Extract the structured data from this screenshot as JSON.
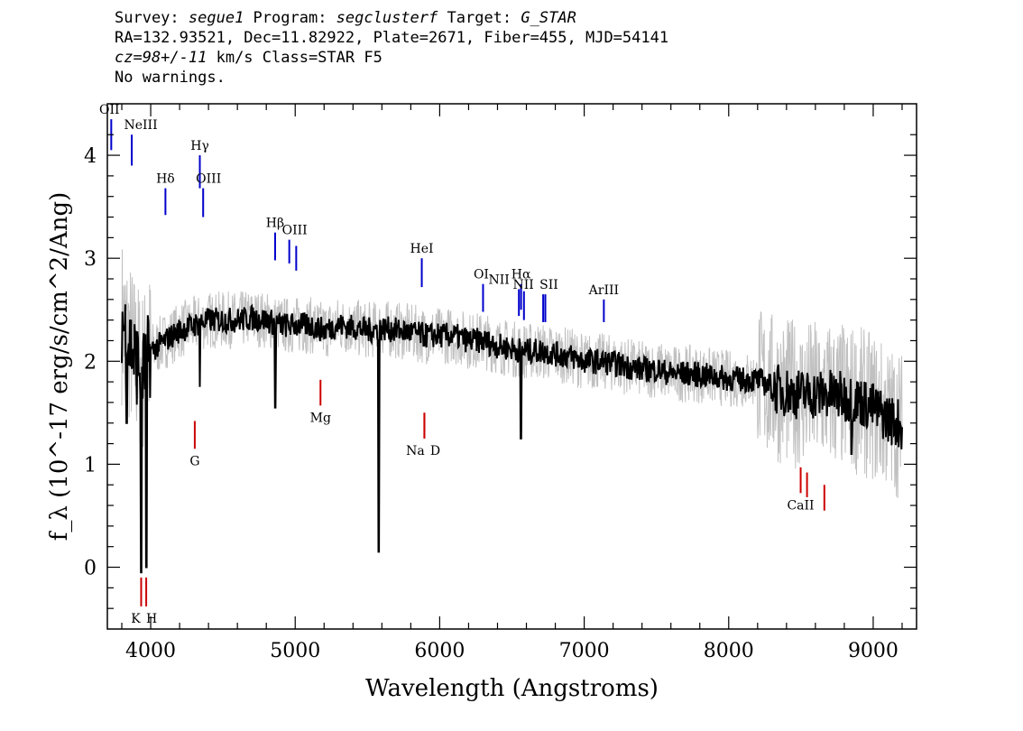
{
  "header": {
    "line1": {
      "survey_label": "Survey: ",
      "survey": "segue1",
      "program_label": " Program: ",
      "program": "segclusterf",
      "target_label": " Target: ",
      "target": "G_STAR"
    },
    "line2": "RA=132.93521, Dec=11.82922, Plate=2671, Fiber=455, MJD=54141",
    "line3": {
      "cz": "cz=98+/-11",
      "rest": " km/s Class=STAR F5"
    },
    "line4": "No warnings."
  },
  "chart_data": {
    "type": "line",
    "xlabel": "Wavelength (Angstroms)",
    "ylabel": "f_λ (10^-17 erg/s/cm^2/Ang)",
    "xlim": [
      3700,
      9300
    ],
    "ylim": [
      -0.6,
      4.5
    ],
    "xticks": [
      4000,
      5000,
      6000,
      7000,
      8000,
      9000
    ],
    "yticks": [
      0,
      1,
      2,
      3,
      4
    ],
    "colors": {
      "spectrum": "#000000",
      "error": "#c0c0c0",
      "emission": "#0000cc",
      "absorption": "#cc0000"
    },
    "series": [
      {
        "name": "",
        "color": "#000000",
        "x": [
          3800,
          3850,
          3900,
          3950,
          4000,
          4100,
          4200,
          4300,
          4400,
          4500,
          4600,
          4700,
          4800,
          4900,
          5000,
          5100,
          5200,
          5300,
          5400,
          5500,
          5600,
          5700,
          5800,
          5900,
          6000,
          6100,
          6200,
          6300,
          6400,
          6500,
          6600,
          6700,
          6800,
          6900,
          7000,
          7100,
          7200,
          7300,
          7400,
          7500,
          7600,
          7700,
          7800,
          7900,
          8000,
          8100,
          8200,
          8300,
          8400,
          8500,
          8600,
          8700,
          8800,
          8900,
          9000,
          9100,
          9200
        ],
        "y": [
          2.4,
          2.2,
          2.0,
          1.9,
          2.1,
          2.2,
          2.3,
          2.35,
          2.4,
          2.4,
          2.4,
          2.42,
          2.4,
          2.35,
          2.35,
          2.35,
          2.3,
          2.35,
          2.33,
          2.3,
          2.32,
          2.3,
          2.28,
          2.25,
          2.25,
          2.25,
          2.2,
          2.2,
          2.15,
          2.12,
          2.1,
          2.1,
          2.07,
          2.05,
          2.0,
          2.0,
          1.98,
          1.95,
          1.92,
          1.92,
          1.88,
          1.88,
          1.87,
          1.85,
          1.83,
          1.82,
          1.82,
          1.75,
          1.7,
          1.68,
          1.68,
          1.68,
          1.65,
          1.62,
          1.55,
          1.45,
          1.38
        ]
      }
    ],
    "absorption_dips": [
      {
        "x": 3934,
        "y": -0.05
      },
      {
        "x": 3969,
        "y": 0.0
      },
      {
        "x": 3835,
        "y": 1.4
      },
      {
        "x": 4861,
        "y": 1.55
      },
      {
        "x": 4340,
        "y": 1.75
      },
      {
        "x": 5577,
        "y": 0.15
      },
      {
        "x": 6563,
        "y": 1.25
      },
      {
        "x": 8850,
        "y": 1.1
      }
    ],
    "emission_lines": [
      {
        "label": "OII",
        "x": 3727,
        "line_top": 4.35,
        "line_bottom": 4.05
      },
      {
        "label": "NeIII",
        "x": 3869,
        "line_top": 4.2,
        "line_bottom": 3.9
      },
      {
        "label": "Hδ",
        "x": 4102,
        "line_top": 3.68,
        "line_bottom": 3.42
      },
      {
        "label": "Hγ",
        "x": 4340,
        "line_top": 4.0,
        "line_bottom": 3.68
      },
      {
        "label": "OIII",
        "x": 4363,
        "line_top": 3.68,
        "line_bottom": 3.4
      },
      {
        "label": "Hβ",
        "x": 4861,
        "line_top": 3.25,
        "line_bottom": 2.98
      },
      {
        "label": "OIII",
        "x": 4959,
        "line_top": 3.18,
        "line_bottom": 2.95
      },
      {
        "label": "",
        "x": 5007,
        "line_top": 3.12,
        "line_bottom": 2.88
      },
      {
        "label": "HeI",
        "x": 5876,
        "line_top": 3.0,
        "line_bottom": 2.72
      },
      {
        "label": "OI",
        "x": 6300,
        "line_top": 2.75,
        "line_bottom": 2.48
      },
      {
        "label": "NII",
        "x": 6548,
        "line_top": 2.7,
        "line_bottom": 2.44
      },
      {
        "label": "Hα",
        "x": 6563,
        "line_top": 2.75,
        "line_bottom": 2.5
      },
      {
        "label": "",
        "x": 6583,
        "line_top": 2.68,
        "line_bottom": 2.4
      },
      {
        "label": "NII",
        "x": 6716,
        "line_top": 2.65,
        "line_bottom": 2.38
      },
      {
        "label": "SII",
        "x": 6731,
        "line_top": 2.65,
        "line_bottom": 2.38
      },
      {
        "label": "ArIII",
        "x": 7136,
        "line_top": 2.6,
        "line_bottom": 2.38
      }
    ],
    "absorption_lines": [
      {
        "label": "K",
        "x": 3934,
        "line_top": -0.1,
        "line_bottom": -0.38
      },
      {
        "label": "H",
        "x": 3969,
        "line_top": -0.1,
        "line_bottom": -0.38
      },
      {
        "label": "G",
        "x": 4305,
        "line_top": 1.42,
        "line_bottom": 1.15
      },
      {
        "label": "Mg",
        "x": 5175,
        "line_top": 1.82,
        "line_bottom": 1.57
      },
      {
        "label": "Na",
        "x": 5894,
        "line_top": 1.5,
        "line_bottom": 1.25
      },
      {
        "label": "D",
        "x": 5894,
        "line_top": 1.5,
        "line_bottom": 1.25
      },
      {
        "label": "CaII",
        "x": 8498,
        "line_top": 0.97,
        "line_bottom": 0.72
      },
      {
        "label": "",
        "x": 8542,
        "line_top": 0.92,
        "line_bottom": 0.68
      },
      {
        "label": "",
        "x": 8662,
        "line_top": 0.8,
        "line_bottom": 0.55
      }
    ]
  }
}
